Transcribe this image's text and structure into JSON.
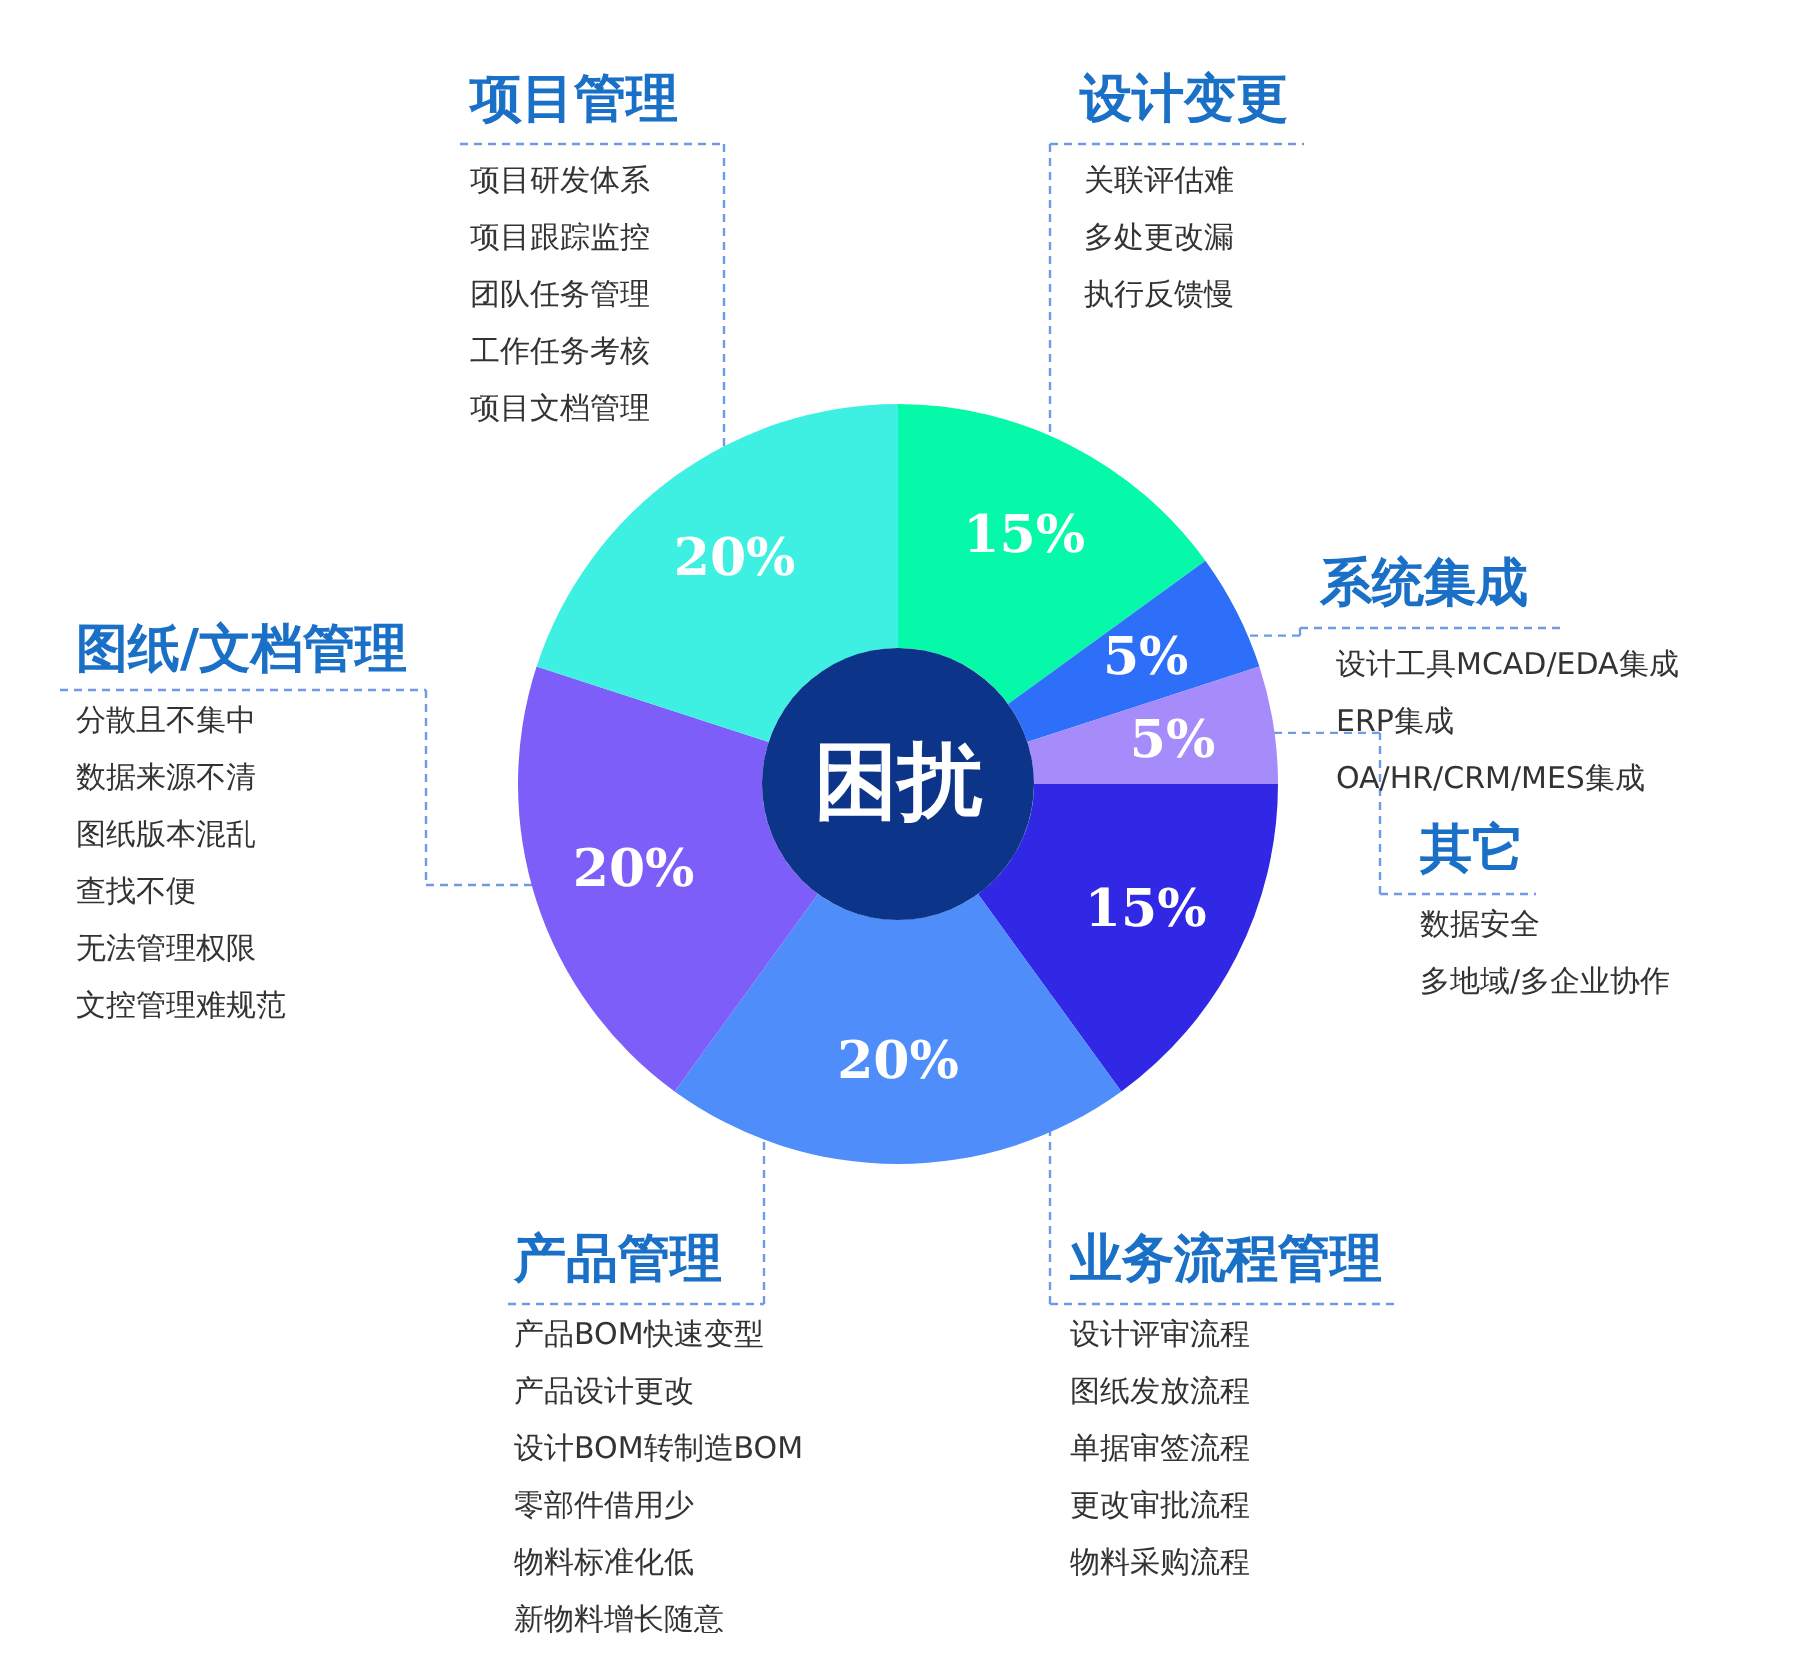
{
  "chart_data": {
    "type": "donut",
    "title": "困扰",
    "categories": [
      "设计变更",
      "系统集成",
      "其它",
      "业务流程管理",
      "产品管理",
      "图纸/文档管理",
      "项目管理"
    ],
    "values": [
      15,
      5,
      5,
      15,
      20,
      20,
      20
    ],
    "colors": [
      "#05f9a8",
      "#2e6ff9",
      "#a68bfb",
      "#3128e6",
      "#4f8dfb",
      "#7d5ef8",
      "#3ef0e2"
    ],
    "value_labels": [
      "15%",
      "5%",
      "5%",
      "15%",
      "20%",
      "20%",
      "20%"
    ],
    "annotations": [
      "关联评估难",
      "多处更改漏",
      "执行反馈慢",
      "设计工具MCAD/EDA集成",
      "ERP集成",
      "OA/HR/CRM/MES集成",
      "数据安全",
      "多地域/多企业协作",
      "设计评审流程",
      "图纸发放流程",
      "单据审签流程",
      "更改审批流程",
      "物料采购流程",
      "产品BOM快速变型",
      "产品设计更改",
      "设计BOM转制造BOM",
      "零部件借用少",
      "物料标准化低",
      "新物料增长随意",
      "分散且不集中",
      "数据来源不清",
      "图纸版本混乱",
      "查找不便",
      "无法管理权限",
      "文控管理难规范",
      "项目研发体系",
      "项目跟踪监控",
      "团队任务管理",
      "工作任务考核",
      "项目文档管理"
    ]
  }
}
